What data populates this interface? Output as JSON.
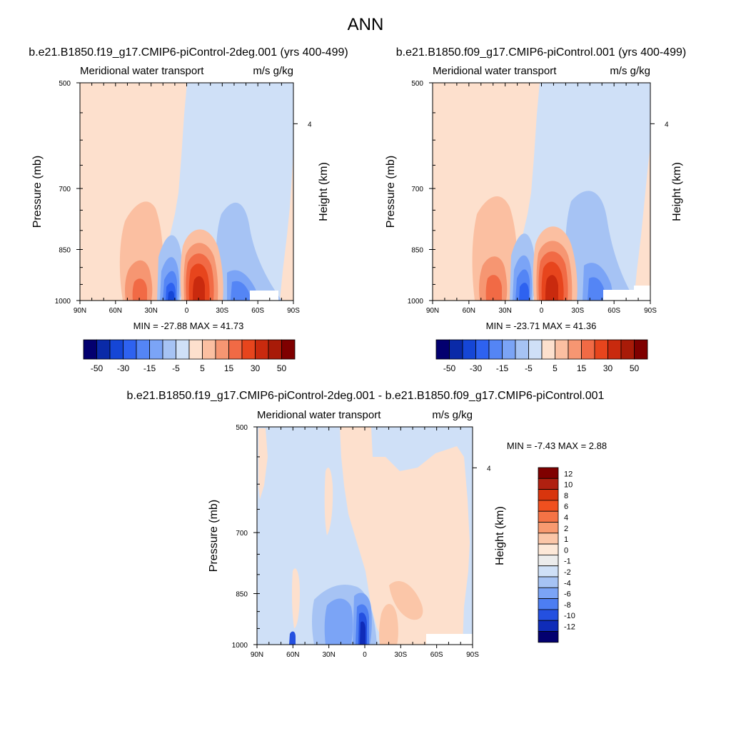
{
  "figure": {
    "title": "ANN"
  },
  "chart_data": [
    {
      "type": "contour",
      "title": "b.e21.B1850.f19_g17.CMIP6-piControl-2deg.001 (yrs 400-499)",
      "left_string": "Meridional water transport",
      "right_string": "m/s g/kg",
      "ylabel": "Pressure (mb)",
      "ylabel_right": "Height (km)",
      "yticks": [
        500,
        700,
        850,
        1000
      ],
      "yticks_right": [
        4
      ],
      "xticks": [
        "90N",
        "60N",
        "30N",
        "0",
        "30S",
        "60S",
        "90S"
      ],
      "stats": "MIN = -27.88  MAX =  41.73",
      "colorbar": {
        "orientation": "horizontal",
        "levels": [
          -50,
          -40,
          -30,
          -20,
          -15,
          -10,
          -5,
          0,
          5,
          10,
          15,
          20,
          30,
          40,
          50
        ],
        "tick_labels": [
          "-50",
          "-30",
          "-15",
          "-5",
          "5",
          "15",
          "30",
          "50"
        ],
        "colors": [
          "#03006f",
          "#0a2aa8",
          "#1546d6",
          "#2e62f0",
          "#5485f5",
          "#7ba4f6",
          "#a6c3f4",
          "#cfe0f7",
          "#fde0cd",
          "#fbbfa1",
          "#f69672",
          "#f16a45",
          "#e7451d",
          "#c92a0e",
          "#a81b08",
          "#7f0000"
        ]
      }
    },
    {
      "type": "contour",
      "title": "b.e21.B1850.f09_g17.CMIP6-piControl.001 (yrs 400-499)",
      "left_string": "Meridional water transport",
      "right_string": "m/s g/kg",
      "ylabel": "Pressure (mb)",
      "ylabel_right": "Height (km)",
      "yticks": [
        500,
        700,
        850,
        1000
      ],
      "yticks_right": [
        4
      ],
      "xticks": [
        "90N",
        "60N",
        "30N",
        "0",
        "30S",
        "60S",
        "90S"
      ],
      "stats": "MIN = -23.71  MAX =  41.36",
      "colorbar": {
        "orientation": "horizontal",
        "levels": [
          -50,
          -40,
          -30,
          -20,
          -15,
          -10,
          -5,
          0,
          5,
          10,
          15,
          20,
          30,
          40,
          50
        ],
        "tick_labels": [
          "-50",
          "-30",
          "-15",
          "-5",
          "5",
          "15",
          "30",
          "50"
        ],
        "colors": [
          "#03006f",
          "#0a2aa8",
          "#1546d6",
          "#2e62f0",
          "#5485f5",
          "#7ba4f6",
          "#a6c3f4",
          "#cfe0f7",
          "#fde0cd",
          "#fbbfa1",
          "#f69672",
          "#f16a45",
          "#e7451d",
          "#c92a0e",
          "#a81b08",
          "#7f0000"
        ]
      }
    },
    {
      "type": "contour",
      "title": "b.e21.B1850.f19_g17.CMIP6-piControl-2deg.001 - b.e21.B1850.f09_g17.CMIP6-piControl.001",
      "left_string": "Meridional water transport",
      "right_string": "m/s g/kg",
      "ylabel": "Pressure (mb)",
      "ylabel_right": "Height (km)",
      "yticks": [
        500,
        700,
        850,
        1000
      ],
      "yticks_right": [
        4
      ],
      "xticks": [
        "90N",
        "60N",
        "30N",
        "0",
        "30S",
        "60S",
        "90S"
      ],
      "stats": "MIN =  -7.43  MAX =   2.88",
      "colorbar": {
        "orientation": "vertical",
        "tick_labels": [
          "12",
          "10",
          "8",
          "6",
          "4",
          "2",
          "1",
          "0",
          "-1",
          "-2",
          "-4",
          "-6",
          "-8",
          "-10",
          "-12"
        ],
        "colors": [
          "#7f0000",
          "#b02010",
          "#d8350d",
          "#f0501f",
          "#f57345",
          "#f89a70",
          "#fbc6a8",
          "#fde8d8",
          "#ececec",
          "#cfe0f7",
          "#a6c3f4",
          "#7ba4f6",
          "#4d7ef2",
          "#2450e0",
          "#0f2cb8",
          "#03006f"
        ]
      }
    }
  ]
}
